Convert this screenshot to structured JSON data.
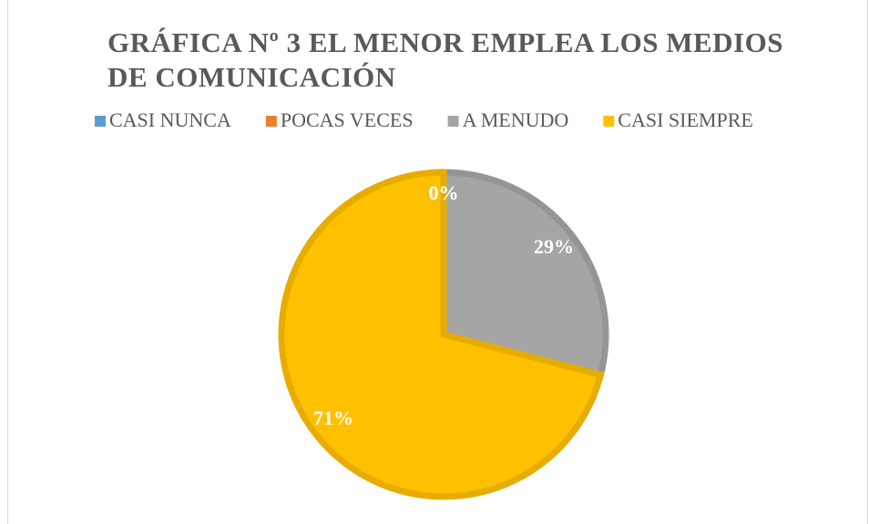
{
  "chart_data": {
    "type": "pie",
    "title": "GRÁFICA Nº 3 EL MENOR EMPLEA LOS MEDIOS DE COMUNICACIÓN",
    "categories": [
      "CASI NUNCA",
      "POCAS VECES",
      "A MENUDO",
      "CASI SIEMPRE"
    ],
    "values": [
      0,
      0,
      29,
      71
    ],
    "value_labels": [
      "0%",
      "0%",
      "29%",
      "71%"
    ],
    "colors": [
      "#5b9bd5",
      "#ed7d31",
      "#a5a5a5",
      "#ffc000"
    ],
    "legend": "top"
  }
}
